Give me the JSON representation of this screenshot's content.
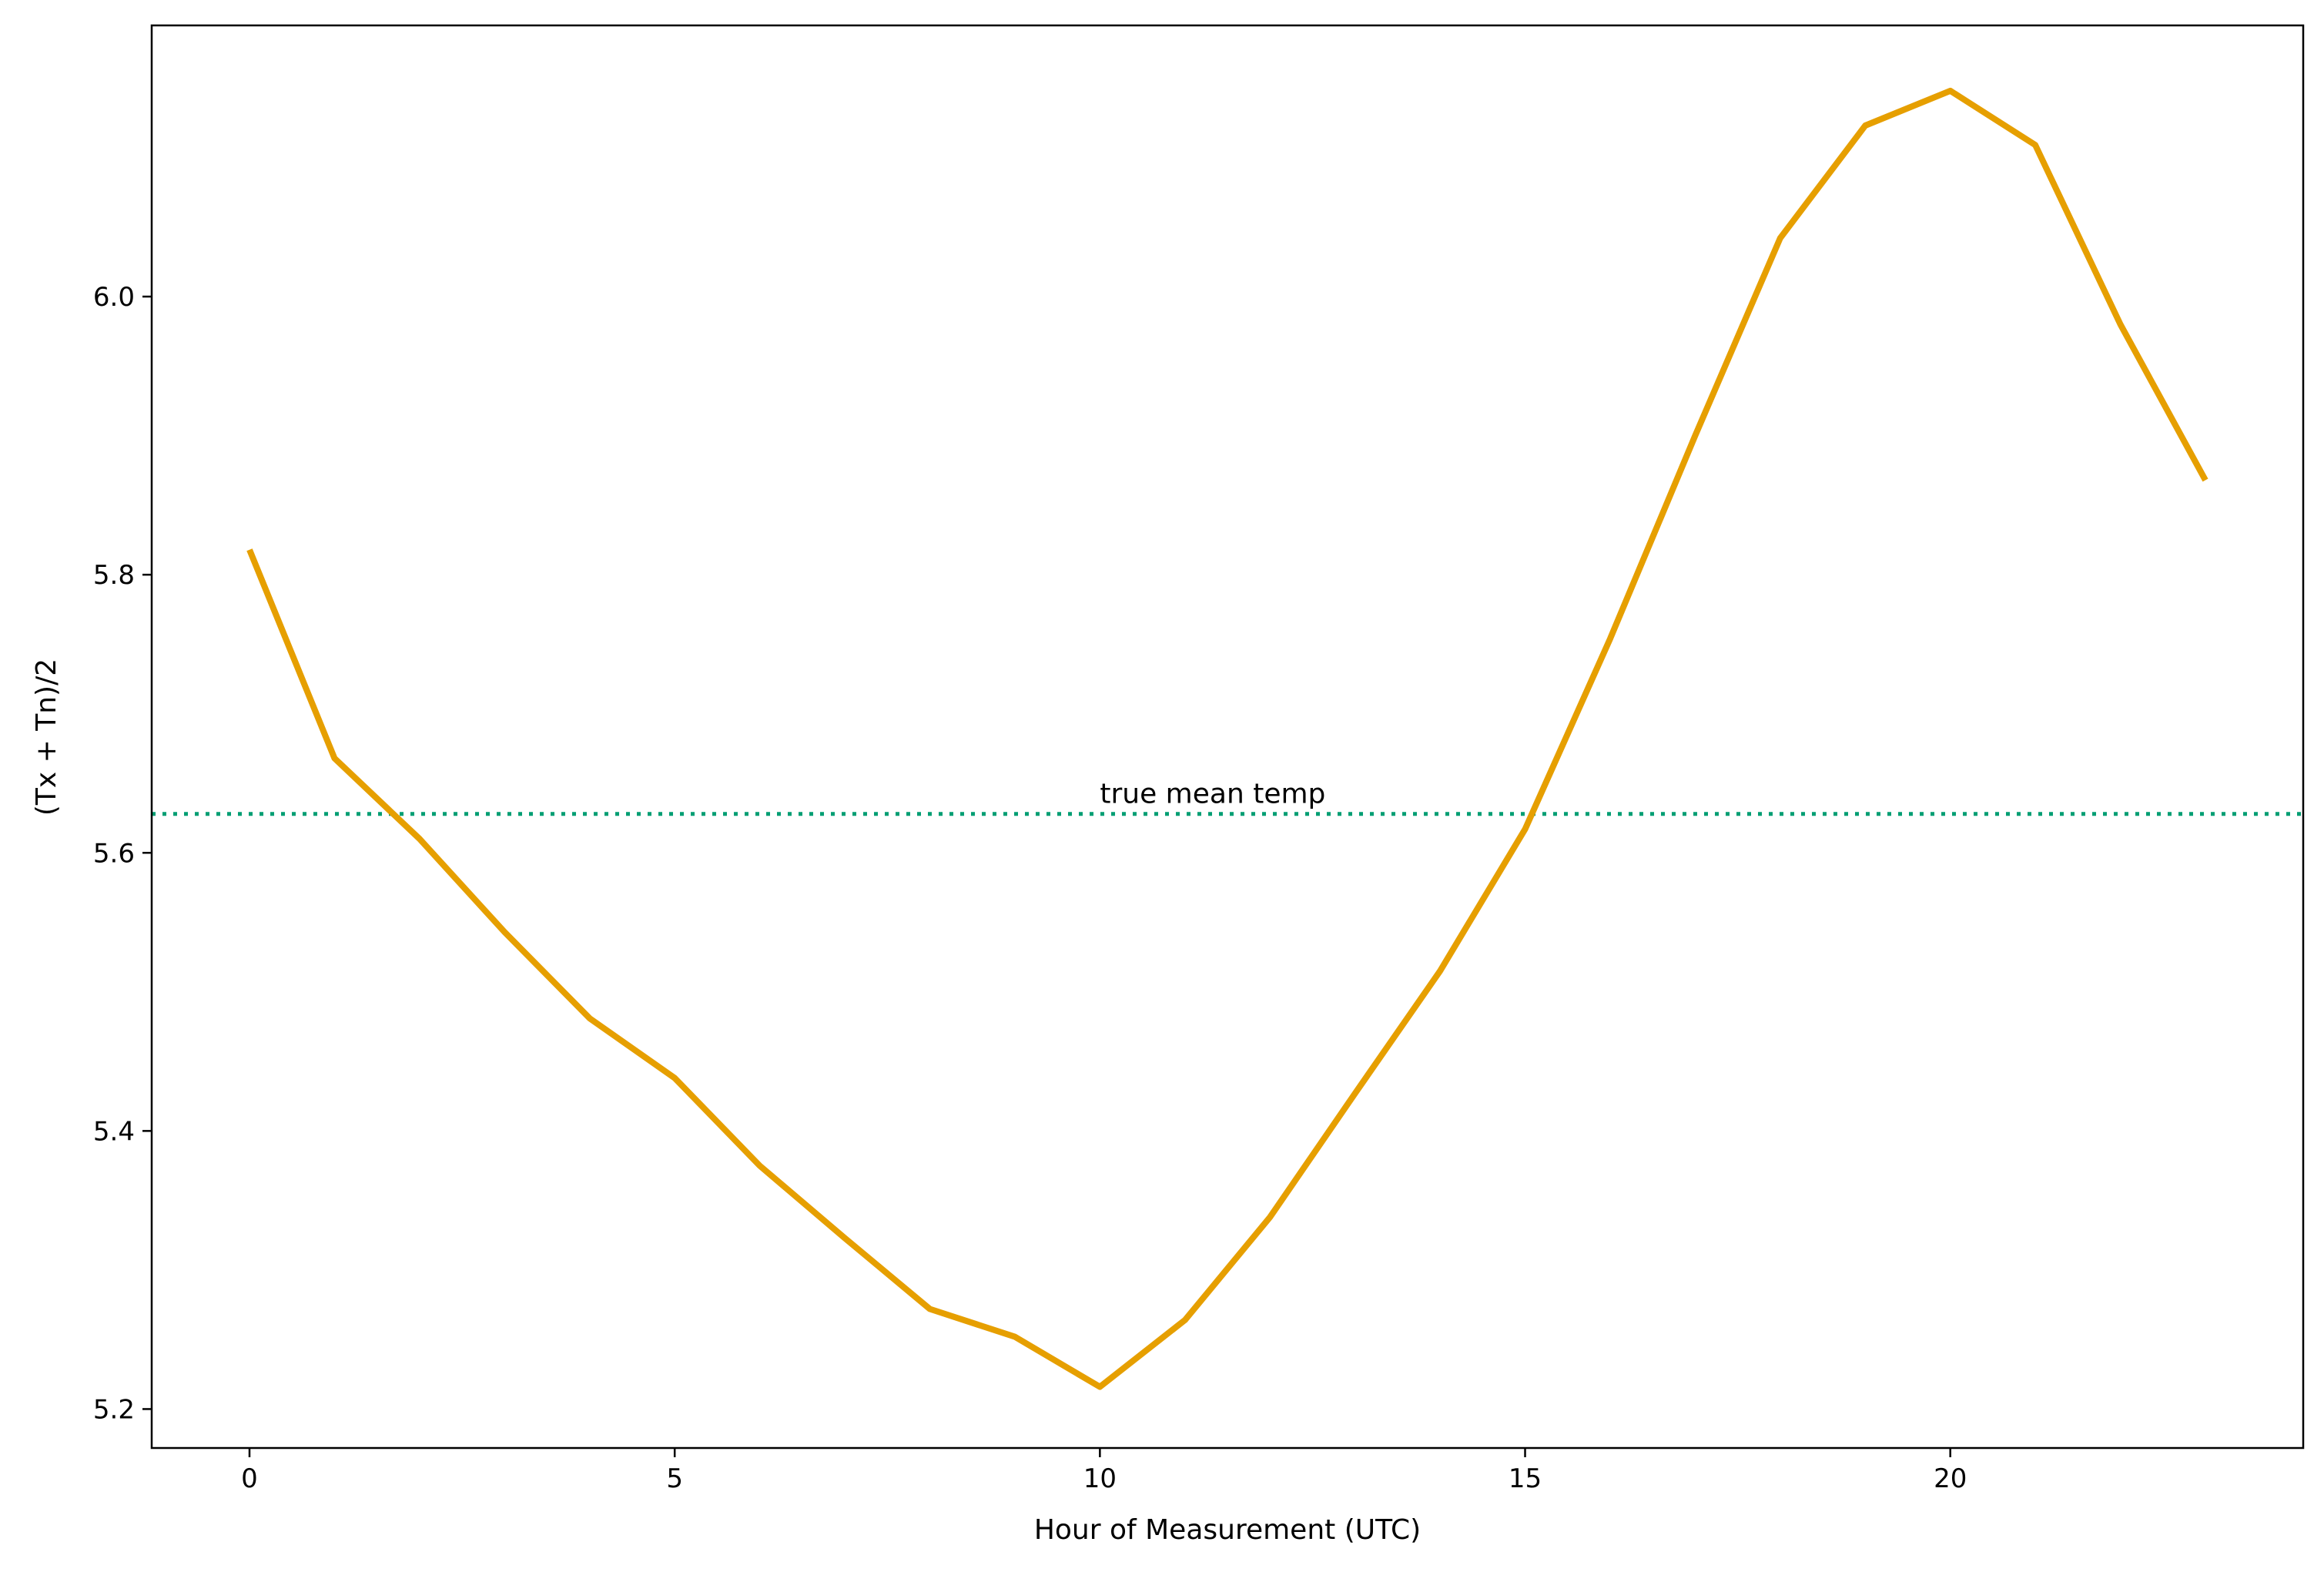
{
  "chart_data": {
    "type": "line",
    "xlabel": "Hour of Measurement (UTC)",
    "ylabel": "(Tx + Tn)/2",
    "xlim": [
      -1.15,
      24.15
    ],
    "ylim": [
      5.172,
      6.195
    ],
    "xticks": [
      0,
      5,
      10,
      15,
      20
    ],
    "yticks": [
      5.2,
      5.4,
      5.6,
      5.8,
      6.0
    ],
    "xtick_labels": [
      "0",
      "5",
      "10",
      "15",
      "20"
    ],
    "ytick_labels": [
      "5.2",
      "5.4",
      "5.6",
      "5.8",
      "6.0"
    ],
    "grid": false,
    "series": [
      {
        "color": "#E69F00",
        "x": [
          0,
          1,
          2,
          3,
          4,
          5,
          6,
          7,
          8,
          9,
          10,
          11,
          12,
          13,
          14,
          15,
          16,
          17,
          18,
          19,
          20,
          21,
          22,
          23
        ],
        "y": [
          5.818,
          5.668,
          5.61,
          5.543,
          5.481,
          5.438,
          5.375,
          5.323,
          5.272,
          5.252,
          5.216,
          5.264,
          5.338,
          5.427,
          5.515,
          5.617,
          5.754,
          5.9,
          6.042,
          6.123,
          6.148,
          6.109,
          5.98,
          5.868
        ]
      }
    ],
    "reference_line": {
      "y": 5.628,
      "color": "#009E73",
      "style": "dotted",
      "label": "true mean temp",
      "label_x": 10
    }
  }
}
